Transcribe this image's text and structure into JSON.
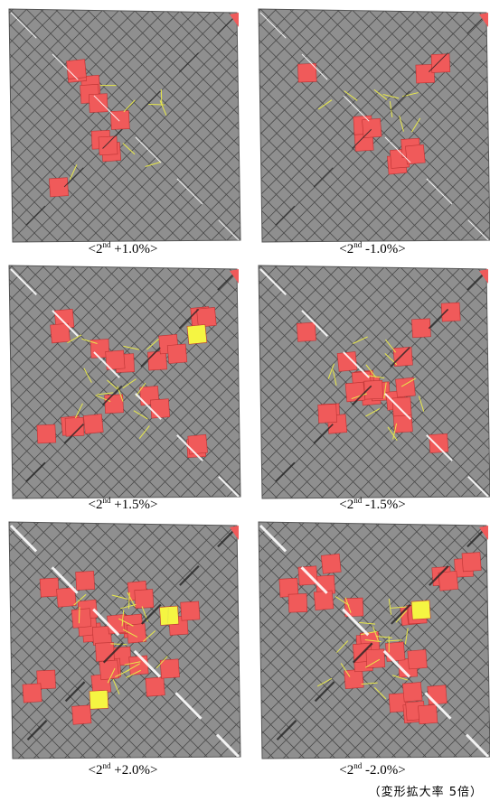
{
  "panels": [
    {
      "caption": {
        "prefix": "<2",
        "superscript": "nd",
        "suffix": " +1.0%>"
      }
    },
    {
      "caption": {
        "prefix": "<2",
        "superscript": "nd",
        "suffix": " -1.0%>"
      }
    },
    {
      "caption": {
        "prefix": "<2",
        "superscript": "nd",
        "suffix": " +1.5%>"
      }
    },
    {
      "caption": {
        "prefix": "<2",
        "superscript": "nd",
        "suffix": " -1.5%>"
      }
    },
    {
      "caption": {
        "prefix": "<2",
        "superscript": "nd",
        "suffix": " +2.0%>"
      }
    },
    {
      "caption": {
        "prefix": "<2",
        "superscript": "nd",
        "suffix": " -2.0%>"
      }
    }
  ],
  "note": "（変形拡大率 5倍）"
}
